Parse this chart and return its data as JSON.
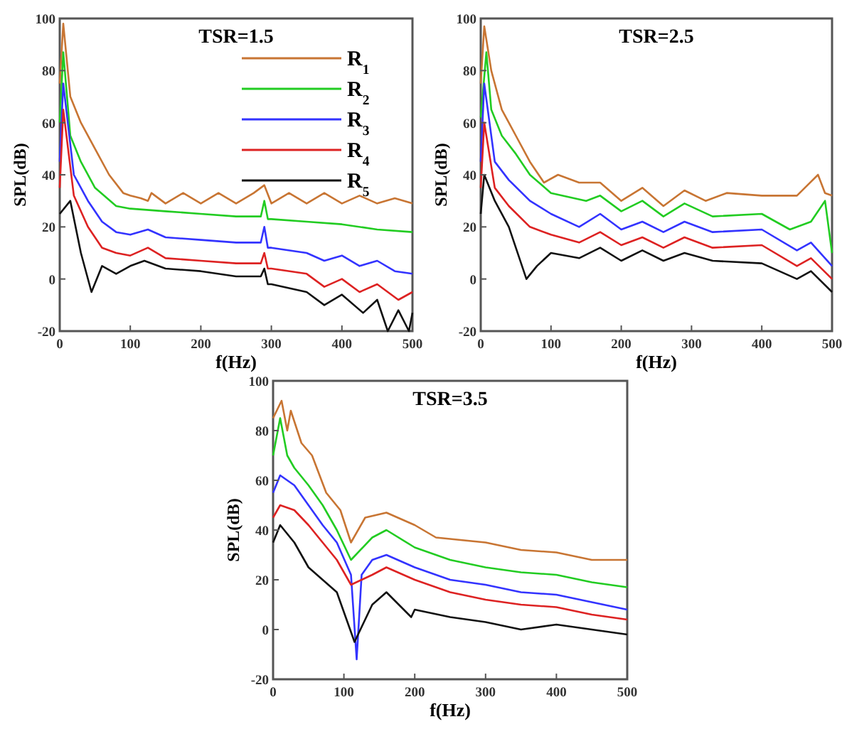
{
  "chart_data": [
    {
      "type": "line",
      "title": "TSR=1.5",
      "xlabel": "f(Hz)",
      "ylabel": "SPL(dB)",
      "xlim": [
        0,
        500
      ],
      "ylim": [
        -20,
        100
      ],
      "xticks": [
        0,
        100,
        200,
        300,
        400,
        500
      ],
      "yticks": [
        -20,
        0,
        20,
        40,
        60,
        80,
        100
      ],
      "legend": "top right",
      "series": [
        {
          "name": "R$_{1}$",
          "color": "#c87533",
          "x": [
            0,
            5,
            15,
            30,
            50,
            70,
            90,
            100,
            115,
            125,
            130,
            150,
            175,
            200,
            225,
            250,
            275,
            290,
            300,
            325,
            350,
            375,
            400,
            425,
            450,
            475,
            500
          ],
          "values": [
            75,
            98,
            70,
            60,
            50,
            40,
            33,
            32,
            31,
            30,
            33,
            29,
            33,
            29,
            33,
            29,
            33,
            36,
            29,
            33,
            29,
            33,
            29,
            32,
            29,
            31,
            29
          ]
        },
        {
          "name": "R$_{2}$",
          "color": "#22cc22",
          "x": [
            0,
            5,
            15,
            30,
            50,
            80,
            100,
            150,
            200,
            250,
            285,
            290,
            295,
            300,
            350,
            400,
            450,
            500
          ],
          "values": [
            60,
            87,
            55,
            45,
            35,
            28,
            27,
            26,
            25,
            24,
            24,
            30,
            23,
            23,
            22,
            21,
            19,
            18
          ]
        },
        {
          "name": "R$_{3}$",
          "color": "#3333ff",
          "x": [
            0,
            5,
            20,
            40,
            60,
            80,
            100,
            125,
            150,
            200,
            250,
            285,
            290,
            295,
            300,
            350,
            375,
            400,
            425,
            450,
            475,
            500
          ],
          "values": [
            45,
            75,
            40,
            30,
            22,
            18,
            17,
            19,
            16,
            15,
            14,
            14,
            20,
            12,
            12,
            10,
            7,
            9,
            5,
            7,
            3,
            2
          ]
        },
        {
          "name": "R$_{4}$",
          "color": "#dd2222",
          "x": [
            0,
            5,
            20,
            40,
            60,
            80,
            100,
            125,
            150,
            200,
            250,
            285,
            290,
            295,
            300,
            350,
            375,
            400,
            425,
            450,
            480,
            500
          ],
          "values": [
            35,
            65,
            32,
            20,
            12,
            10,
            9,
            12,
            8,
            7,
            6,
            6,
            10,
            4,
            4,
            2,
            -3,
            0,
            -5,
            -2,
            -8,
            -5
          ]
        },
        {
          "name": "R$_{5}$",
          "color": "#111111",
          "x": [
            0,
            15,
            30,
            45,
            60,
            80,
            100,
            120,
            150,
            200,
            250,
            285,
            290,
            295,
            300,
            350,
            375,
            400,
            430,
            450,
            465,
            480,
            495,
            500
          ],
          "values": [
            25,
            30,
            10,
            -5,
            5,
            2,
            5,
            7,
            4,
            3,
            1,
            1,
            4,
            -2,
            -2,
            -5,
            -10,
            -6,
            -13,
            -8,
            -20,
            -12,
            -20,
            -13
          ]
        }
      ]
    },
    {
      "type": "line",
      "title": "TSR=2.5",
      "xlabel": "f(Hz)",
      "ylabel": "SPL(dB)",
      "xlim": [
        0,
        500
      ],
      "ylim": [
        -20,
        100
      ],
      "xticks": [
        0,
        100,
        200,
        300,
        400,
        500
      ],
      "yticks": [
        -20,
        0,
        20,
        40,
        60,
        80,
        100
      ],
      "series": [
        {
          "color": "#c87533",
          "x": [
            0,
            5,
            15,
            30,
            40,
            50,
            70,
            90,
            110,
            140,
            170,
            200,
            230,
            260,
            290,
            320,
            350,
            400,
            450,
            480,
            490,
            500
          ],
          "values": [
            75,
            97,
            80,
            65,
            60,
            55,
            45,
            37,
            40,
            37,
            37,
            30,
            35,
            28,
            34,
            30,
            33,
            32,
            32,
            40,
            33,
            32
          ]
        },
        {
          "color": "#22cc22",
          "x": [
            0,
            8,
            15,
            30,
            50,
            70,
            100,
            150,
            170,
            200,
            230,
            260,
            290,
            330,
            400,
            440,
            470,
            490,
            500
          ],
          "values": [
            62,
            87,
            65,
            55,
            48,
            40,
            33,
            30,
            32,
            26,
            30,
            24,
            29,
            24,
            25,
            19,
            22,
            30,
            10
          ]
        },
        {
          "color": "#3333ff",
          "x": [
            0,
            5,
            20,
            40,
            70,
            100,
            140,
            170,
            200,
            230,
            260,
            290,
            330,
            400,
            450,
            470,
            500
          ],
          "values": [
            45,
            75,
            45,
            38,
            30,
            25,
            20,
            25,
            19,
            22,
            18,
            22,
            18,
            19,
            11,
            14,
            5
          ]
        },
        {
          "color": "#dd2222",
          "x": [
            0,
            5,
            20,
            40,
            70,
            100,
            140,
            170,
            200,
            230,
            260,
            290,
            330,
            400,
            450,
            470,
            500
          ],
          "values": [
            35,
            60,
            35,
            28,
            20,
            17,
            14,
            18,
            13,
            16,
            12,
            16,
            12,
            13,
            5,
            8,
            0
          ]
        },
        {
          "color": "#111111",
          "x": [
            0,
            5,
            20,
            40,
            65,
            80,
            100,
            140,
            170,
            200,
            230,
            260,
            290,
            330,
            400,
            450,
            470,
            500
          ],
          "values": [
            25,
            40,
            30,
            20,
            0,
            5,
            10,
            8,
            12,
            7,
            11,
            7,
            10,
            7,
            6,
            0,
            3,
            -5
          ]
        }
      ]
    },
    {
      "type": "line",
      "title": "TSR=3.5",
      "xlabel": "f(Hz)",
      "ylabel": "SPL(dB)",
      "xlim": [
        0,
        500
      ],
      "ylim": [
        -20,
        100
      ],
      "xticks": [
        0,
        100,
        200,
        300,
        400,
        500
      ],
      "yticks": [
        -20,
        0,
        20,
        40,
        60,
        80,
        100
      ],
      "series": [
        {
          "color": "#c87533",
          "x": [
            0,
            12,
            20,
            25,
            40,
            55,
            75,
            95,
            110,
            130,
            160,
            200,
            230,
            300,
            350,
            400,
            450,
            500
          ],
          "values": [
            85,
            92,
            80,
            88,
            75,
            70,
            55,
            48,
            35,
            45,
            47,
            42,
            37,
            35,
            32,
            31,
            28,
            28
          ]
        },
        {
          "color": "#22cc22",
          "x": [
            0,
            10,
            20,
            30,
            50,
            70,
            90,
            110,
            140,
            160,
            200,
            250,
            300,
            350,
            400,
            450,
            500
          ],
          "values": [
            70,
            85,
            70,
            65,
            58,
            50,
            40,
            28,
            37,
            40,
            33,
            28,
            25,
            23,
            22,
            19,
            17
          ]
        },
        {
          "color": "#3333ff",
          "x": [
            0,
            10,
            30,
            50,
            70,
            90,
            110,
            118,
            125,
            140,
            160,
            200,
            250,
            300,
            350,
            400,
            450,
            500
          ],
          "values": [
            55,
            62,
            58,
            50,
            42,
            35,
            22,
            -12,
            22,
            28,
            30,
            25,
            20,
            18,
            15,
            14,
            11,
            8
          ]
        },
        {
          "color": "#dd2222",
          "x": [
            0,
            10,
            30,
            50,
            70,
            90,
            110,
            140,
            160,
            200,
            250,
            300,
            350,
            400,
            450,
            500
          ],
          "values": [
            45,
            50,
            48,
            42,
            35,
            28,
            18,
            22,
            25,
            20,
            15,
            12,
            10,
            9,
            6,
            4
          ]
        },
        {
          "color": "#111111",
          "x": [
            0,
            10,
            30,
            50,
            70,
            90,
            115,
            140,
            160,
            195,
            200,
            250,
            300,
            350,
            400,
            450,
            500
          ],
          "values": [
            35,
            42,
            35,
            25,
            20,
            15,
            -5,
            10,
            15,
            5,
            8,
            5,
            3,
            0,
            2,
            0,
            -2
          ]
        }
      ]
    }
  ]
}
